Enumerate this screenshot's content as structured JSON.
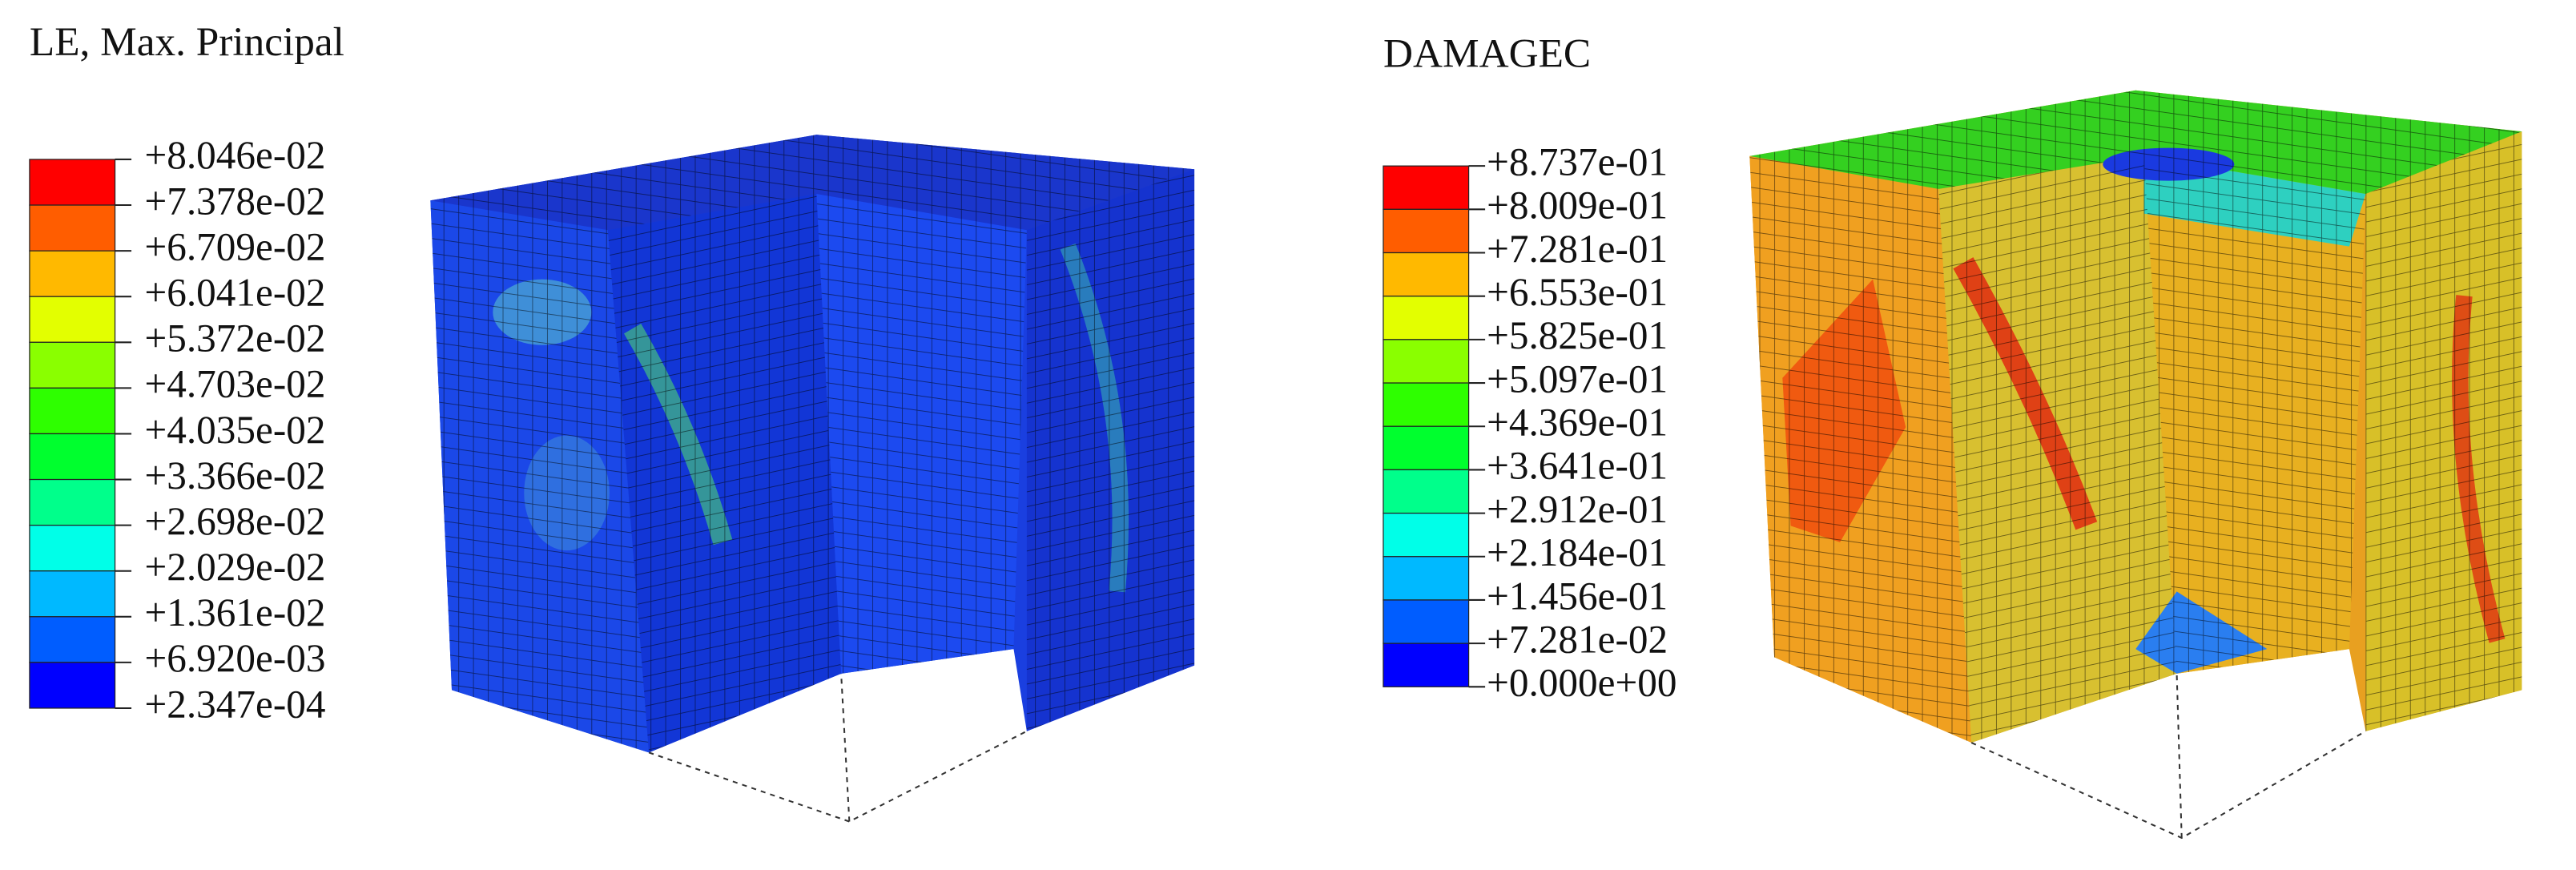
{
  "panels": [
    {
      "title": "LE, Max. Principal",
      "legend": [
        "+8.046e-02",
        "+7.378e-02",
        "+6.709e-02",
        "+6.041e-02",
        "+5.372e-02",
        "+4.703e-02",
        "+4.035e-02",
        "+3.366e-02",
        "+2.698e-02",
        "+2.029e-02",
        "+1.361e-02",
        "+6.920e-03",
        "+2.347e-04"
      ]
    },
    {
      "title": "DAMAGEC",
      "legend": [
        "+8.737e-01",
        "+8.009e-01",
        "+7.281e-01",
        "+6.553e-01",
        "+5.825e-01",
        "+5.097e-01",
        "+4.369e-01",
        "+3.641e-01",
        "+2.912e-01",
        "+2.184e-01",
        "+1.456e-01",
        "+7.281e-02",
        "+0.000e+00"
      ]
    }
  ]
}
